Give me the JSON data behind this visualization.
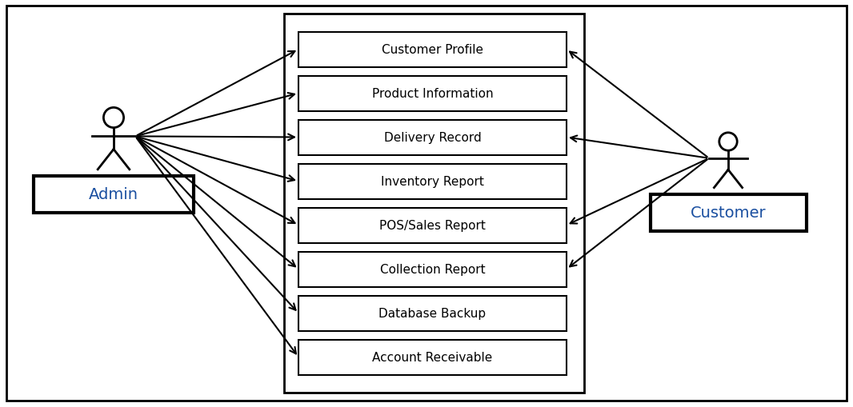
{
  "bg_color": "#ffffff",
  "border_color": "#000000",
  "use_cases": [
    "Customer Profile",
    "Product Information",
    "Delivery Record",
    "Inventory Report",
    "POS/Sales Report",
    "Collection Report",
    "Database Backup",
    "Account Receivable"
  ],
  "use_case_text_color": "#000000",
  "use_case_box_color": "#ffffff",
  "use_case_box_border": "#000000",
  "admin_label": "Admin",
  "customer_label": "Customer",
  "label_box_color": "#ffffff",
  "label_box_border": "#000000",
  "label_text_color": "#1a4fa0",
  "arrow_color": "#000000",
  "admin_arrows_to": [
    0,
    1,
    2,
    3,
    4,
    5,
    6,
    7
  ],
  "customer_arrows_to": [
    0,
    2,
    4,
    5
  ],
  "system_box_color": "#ffffff",
  "system_box_border": "#000000",
  "figsize": [
    10.66,
    5.1
  ],
  "dpi": 100
}
